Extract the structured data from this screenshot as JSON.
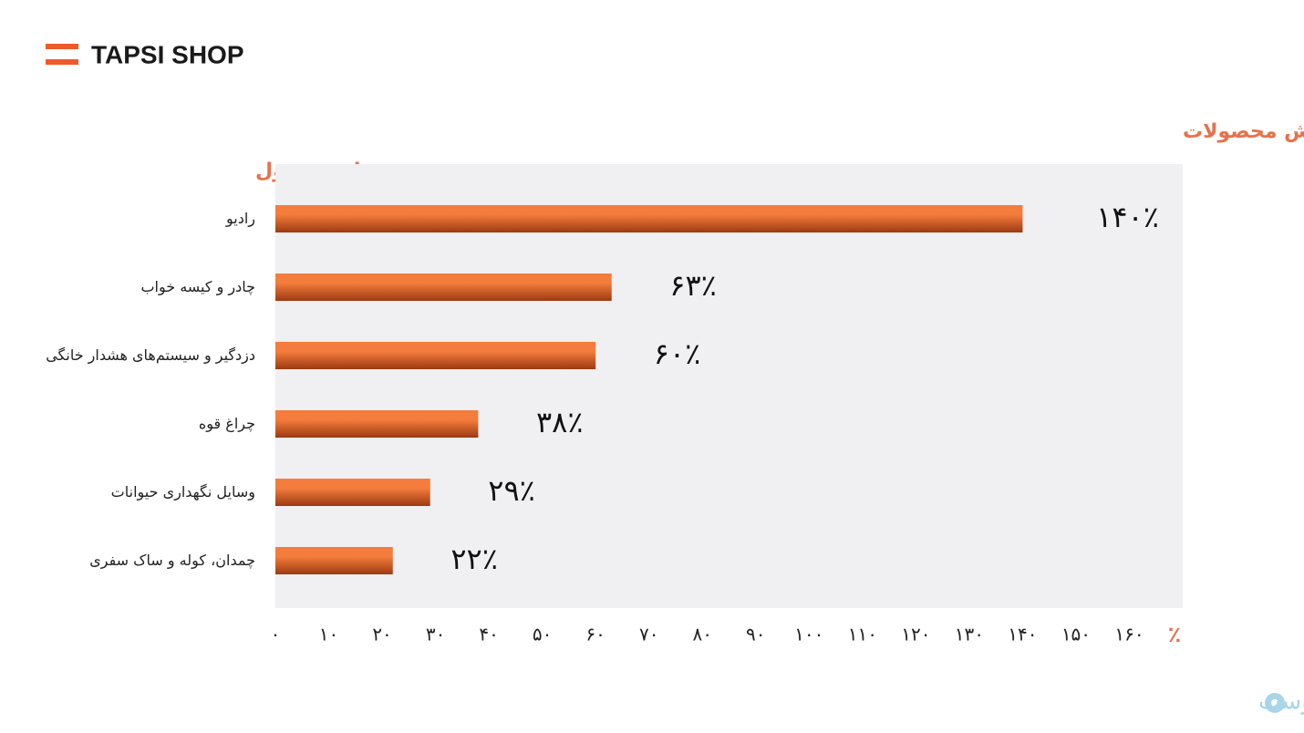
{
  "header": {
    "brand": "TAPSI SHOP"
  },
  "chart_data": {
    "type": "barh",
    "title": "افزایش فروش محصولات",
    "y_label": "نام محصول",
    "x_unit": "٪",
    "categories": [
      "رادیو",
      "چادر و کیسه خواب",
      "دزدگیر و سیستم‌های هشدار خانگی",
      "چراغ قوه",
      "وسایل نگهداری حیوانات",
      "چمدان، کوله و ساک سفری"
    ],
    "values": [
      140,
      63,
      60,
      38,
      29,
      22
    ],
    "value_labels": [
      "۱۴۰٪",
      "۶۳٪",
      "۶۰٪",
      "۳۸٪",
      "۲۹٪",
      "۲۲٪"
    ],
    "color": "#f47c3c",
    "xlim": [
      0,
      170
    ],
    "xticks": [
      {
        "value": 0,
        "label": "۰"
      },
      {
        "value": 10,
        "label": "۱۰"
      },
      {
        "value": 20,
        "label": "۲۰"
      },
      {
        "value": 30,
        "label": "۳۰"
      },
      {
        "value": 40,
        "label": "۴۰"
      },
      {
        "value": 50,
        "label": "۵۰"
      },
      {
        "value": 60,
        "label": "۶۰"
      },
      {
        "value": 70,
        "label": "۷۰"
      },
      {
        "value": 80,
        "label": "۸۰"
      },
      {
        "value": 90,
        "label": "۹۰"
      },
      {
        "value": 100,
        "label": "۱۰۰"
      },
      {
        "value": 110,
        "label": "۱۱۰"
      },
      {
        "value": 120,
        "label": "۱۲۰"
      },
      {
        "value": 130,
        "label": "۱۳۰"
      },
      {
        "value": 140,
        "label": "۱۴۰"
      },
      {
        "value": 150,
        "label": "۱۵۰"
      },
      {
        "value": 160,
        "label": "۱۶۰"
      }
    ]
  },
  "watermark": "پیوست"
}
